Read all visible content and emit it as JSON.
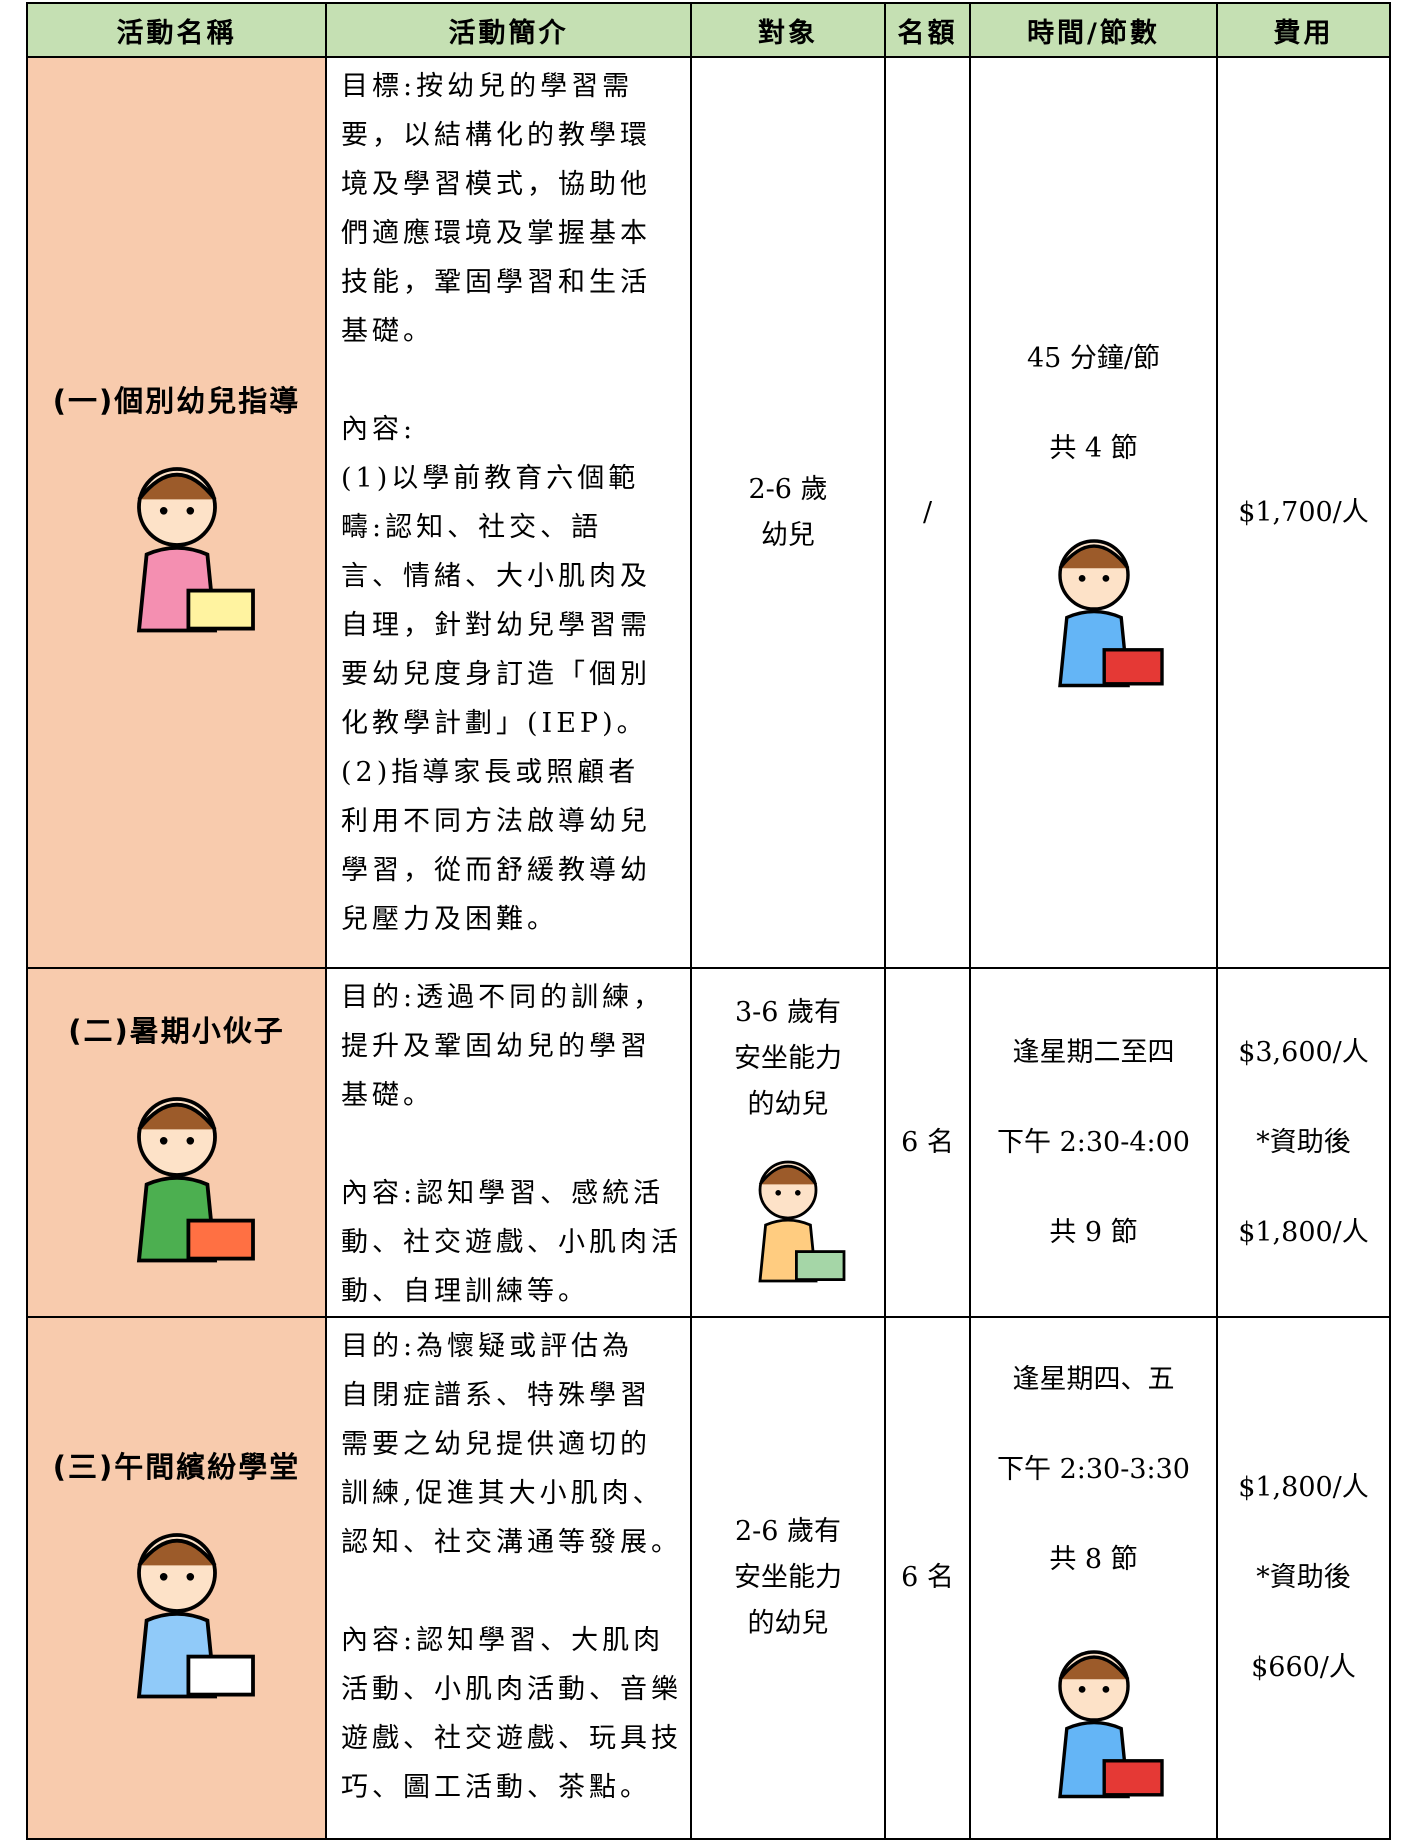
{
  "table": {
    "header": [
      "活動名稱",
      "活動簡介",
      "對象",
      "名額",
      "時間/節數",
      "費用"
    ],
    "rows": [
      {
        "name": "(一)個別幼兒指導",
        "description": [
          [
            "目標:按幼兒的學習需",
            "要，以結構化的教學環",
            "境及學習模式，協助他",
            "們適應環境及掌握基本",
            "技能，鞏固學習和生活",
            "基礎。"
          ],
          [
            "內容:",
            "(1)以學前教育六個範",
            "疇:認知、社交、語",
            "言、情緒、大小肌肉及",
            "自理，針對幼兒學習需",
            "要幼兒度身訂造「個別",
            "化教學計劃」(IEP)。",
            "(2)指導家長或照顧者",
            "利用不同方法啟導幼兒",
            "學習，從而舒緩教導幼",
            "兒壓力及困難。"
          ]
        ],
        "target": [
          "2-6 歲",
          "幼兒"
        ],
        "quota": "/",
        "time": [
          "45 分鐘/節",
          "共 4 節"
        ],
        "fee": [
          "$1,700/人"
        ]
      },
      {
        "name": "(二)暑期小伙子",
        "description": [
          [
            "目的:透過不同的訓練，",
            "提升及鞏固幼兒的學習",
            "基礎。"
          ],
          [
            "內容:認知學習、感統活",
            "動、社交遊戲、小肌肉活",
            "動、自理訓練等。"
          ]
        ],
        "target": [
          "3-6 歲有",
          "安坐能力",
          "的幼兒"
        ],
        "quota": "6 名",
        "time": [
          "逢星期二至四",
          "下午 2:30-4:00",
          "共 9 節"
        ],
        "fee": [
          "$3,600/人",
          "*資助後",
          "$1,800/人"
        ]
      },
      {
        "name": "(三)午間繽紛學堂",
        "description": [
          [
            "目的:為懷疑或評估為",
            "自閉症譜系、特殊學習",
            "需要之幼兒提供適切的",
            "訓練,促進其大小肌肉、",
            "認知、社交溝通等發展。"
          ],
          [
            "內容:認知學習、大肌肉",
            "活動、小肌肉活動、音樂",
            "遊戲、社交遊戲、玩具技",
            "巧、圖工活動、茶點。"
          ]
        ],
        "target": [
          "2-6 歲有",
          "安坐能力",
          "的幼兒"
        ],
        "quota": "6 名",
        "time": [
          "逢星期四、五",
          "下午 2:30-3:30",
          "共 8 節"
        ],
        "fee": [
          "$1,800/人",
          "*資助後",
          "$660/人"
        ]
      }
    ]
  }
}
